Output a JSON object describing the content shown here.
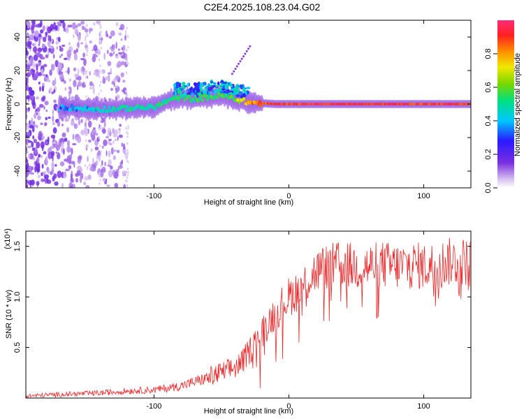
{
  "title": "C2E4.2025.108.23.04.G02",
  "colors": {
    "snr_line": "#e8282a",
    "colormap": [
      "#ffffff",
      "#d9c3f2",
      "#7a2fe0",
      "#2a1aff",
      "#00c8ff",
      "#00e080",
      "#7ad600",
      "#f0e800",
      "#ff8800",
      "#ff2020",
      "#ff2d78"
    ]
  },
  "chart_data": [
    {
      "type": "heatmap",
      "xlabel": "Height of straight line (km)",
      "ylabel": "Frequency (Hz)",
      "xlim": [
        -195,
        135
      ],
      "ylim": [
        -50,
        50
      ],
      "x_ticks": [
        -100,
        0,
        100
      ],
      "x_tick_labels": [
        "-100",
        "0",
        "100"
      ],
      "y_ticks": [
        -40,
        -20,
        0,
        20,
        40
      ],
      "y_tick_labels": [
        "-40",
        "-20",
        "0",
        "20",
        "40"
      ],
      "colorbar": {
        "label": "Normalized spectral amplitude",
        "range": [
          0,
          1
        ],
        "ticks": [
          0.0,
          0.2,
          0.4,
          0.6,
          0.8
        ],
        "tick_labels": [
          "0.0",
          "0.2",
          "0.4",
          "0.6",
          "0.8"
        ]
      },
      "ridge": {
        "x": [
          -165,
          -150,
          -130,
          -110,
          -100,
          -90,
          -80,
          -70,
          -60,
          -50,
          -40,
          -30,
          -20,
          -10,
          0,
          20,
          50,
          100,
          135
        ],
        "freq": [
          -2,
          -3,
          -3,
          -2,
          -2,
          2,
          4,
          3,
          4,
          5,
          3,
          1,
          0.5,
          0,
          0,
          0,
          0,
          0,
          0
        ],
        "amplitude": [
          0.35,
          0.4,
          0.45,
          0.5,
          0.5,
          0.5,
          0.5,
          0.5,
          0.55,
          0.55,
          0.6,
          0.8,
          0.85,
          0.9,
          0.9,
          0.92,
          0.92,
          0.9,
          0.9
        ]
      }
    },
    {
      "type": "line",
      "xlabel": "Height of straight line (km)",
      "ylabel": "SNR (10 * v/v)",
      "scale_label": "(x10⁴)",
      "xlim": [
        -195,
        135
      ],
      "ylim": [
        0,
        1.65
      ],
      "x_ticks": [
        -100,
        0,
        100
      ],
      "x_tick_labels": [
        "-100",
        "0",
        "100"
      ],
      "y_ticks": [
        0.5,
        1.0,
        1.5
      ],
      "y_tick_labels": [
        "0.5",
        "1.0",
        "1.5"
      ],
      "series": [
        {
          "x": [
            -195,
            -180,
            -160,
            -140,
            -120,
            -100,
            -80,
            -70,
            -60,
            -50,
            -40,
            -35,
            -30,
            -25,
            -20,
            -15,
            -10,
            -5,
            0,
            5,
            10,
            15,
            20,
            30,
            40,
            50,
            60,
            70,
            80,
            90,
            100,
            110,
            120,
            135
          ],
          "values": [
            0.02,
            0.03,
            0.04,
            0.05,
            0.07,
            0.08,
            0.12,
            0.16,
            0.2,
            0.25,
            0.3,
            0.35,
            0.45,
            0.55,
            0.65,
            0.75,
            0.85,
            0.92,
            1.0,
            1.05,
            1.1,
            1.18,
            1.25,
            1.3,
            1.32,
            1.3,
            1.3,
            1.32,
            1.3,
            1.32,
            1.3,
            1.32,
            1.35,
            1.35
          ]
        }
      ]
    }
  ]
}
